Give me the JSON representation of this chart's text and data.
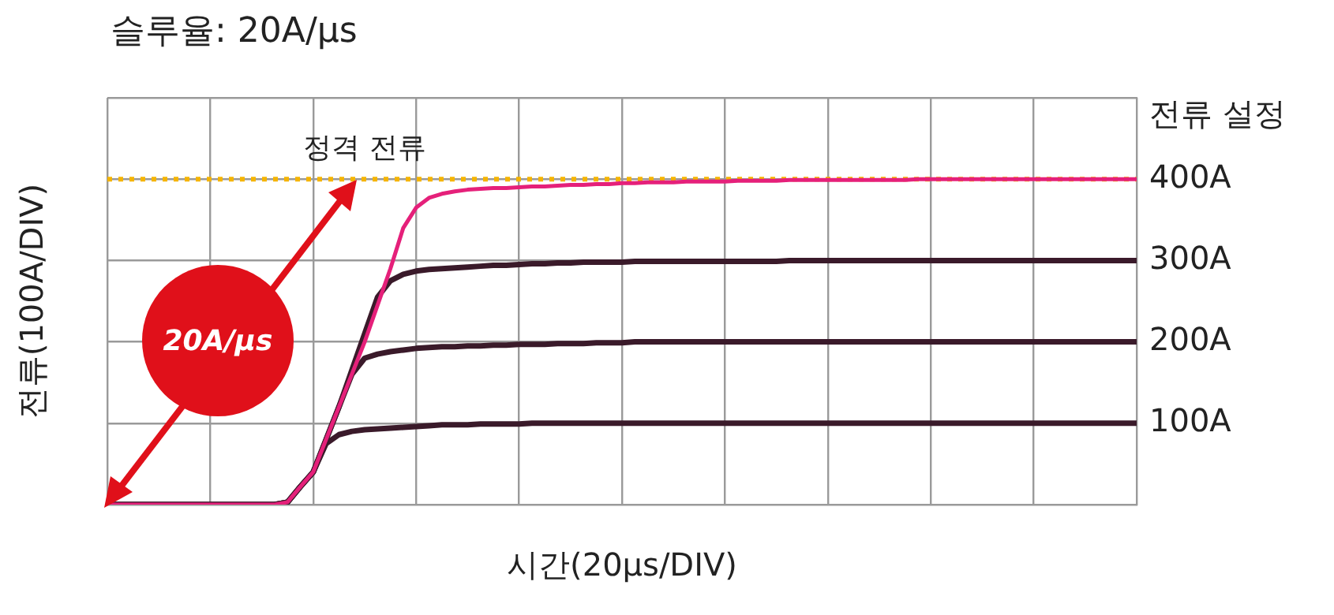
{
  "chart_data": {
    "type": "line",
    "title": "슬루율: 20A/μs",
    "xlabel": "시간(20μs/DIV)",
    "ylabel": "전류(100A/DIV)",
    "annotations": [
      "20A/μs",
      "전류 설정"
    ],
    "categories": [
      null,
      null,
      null,
      null,
      null,
      null,
      null,
      null,
      null,
      null,
      null,
      null,
      null,
      null,
      null,
      null,
      null,
      null,
      null,
      null,
      null,
      null,
      null,
      null,
      null,
      null,
      null,
      null,
      null,
      null,
      null,
      null,
      null,
      null,
      null,
      null,
      null,
      null,
      null,
      null,
      null,
      null,
      null,
      null,
      null,
      null,
      null,
      null,
      null,
      null,
      null,
      null,
      null,
      null,
      null,
      null,
      null,
      null,
      null,
      null,
      null,
      null,
      null,
      null,
      null,
      null,
      null,
      null,
      null,
      null,
      null,
      null,
      null,
      null,
      null,
      null,
      null,
      null,
      null,
      null,
      null
    ],
    "ylim": [
      0,
      500
    ],
    "yticks": [
      {
        "value": 0,
        "label": null
      },
      {
        "value": 100,
        "label": "100A"
      },
      {
        "value": 200,
        "label": "200A"
      },
      {
        "value": 300,
        "label": "300A"
      },
      {
        "value": 400,
        "label": "400A"
      },
      {
        "value": 500,
        "label": null
      }
    ],
    "tick_labels": "y",
    "grid": true,
    "marker": "none",
    "line_style": "solid",
    "ref_lines": [
      {
        "axis": "y",
        "value": 400,
        "label": "정격 전류",
        "color": "#f5b400",
        "line_style": "dotted"
      }
    ],
    "series": [
      {
        "color": "#3a1a2a",
        "values": [
          0,
          0,
          0,
          0,
          0,
          0,
          0,
          0,
          0,
          0,
          0,
          0,
          0,
          0,
          3,
          22,
          40,
          75,
          86,
          90,
          92,
          93,
          94,
          95,
          96,
          97,
          98,
          98,
          98,
          99,
          99,
          99,
          99,
          100,
          100,
          100,
          100,
          100,
          100,
          100,
          100,
          100,
          100,
          100,
          100,
          100,
          100,
          100,
          100,
          100,
          100,
          100,
          100,
          100,
          100,
          100,
          100,
          100,
          100,
          100,
          100,
          100,
          100,
          100,
          100,
          100,
          100,
          100,
          100,
          100,
          100,
          100,
          100,
          100,
          100,
          100,
          100,
          100,
          100,
          100,
          100
        ]
      },
      {
        "color": "#3a1a2a",
        "values": [
          0,
          0,
          0,
          0,
          0,
          0,
          0,
          0,
          0,
          0,
          0,
          0,
          0,
          0,
          3,
          22,
          40,
          80,
          120,
          160,
          180,
          185,
          188,
          190,
          192,
          193,
          194,
          194,
          195,
          195,
          196,
          196,
          197,
          197,
          197,
          198,
          198,
          198,
          199,
          199,
          199,
          200,
          200,
          200,
          200,
          200,
          200,
          200,
          200,
          200,
          200,
          200,
          200,
          200,
          200,
          200,
          200,
          200,
          200,
          200,
          200,
          200,
          200,
          200,
          200,
          200,
          200,
          200,
          200,
          200,
          200,
          200,
          200,
          200,
          200,
          200,
          200,
          200,
          200,
          200,
          200
        ]
      },
      {
        "color": "#3a1a2a",
        "values": [
          0,
          0,
          0,
          0,
          0,
          0,
          0,
          0,
          0,
          0,
          0,
          0,
          0,
          0,
          3,
          22,
          40,
          80,
          120,
          165,
          210,
          255,
          275,
          283,
          287,
          289,
          290,
          291,
          292,
          293,
          294,
          294,
          295,
          296,
          296,
          297,
          297,
          298,
          298,
          298,
          298,
          299,
          299,
          299,
          299,
          299,
          299,
          299,
          299,
          299,
          299,
          299,
          299,
          300,
          300,
          300,
          300,
          300,
          300,
          300,
          300,
          300,
          300,
          300,
          300,
          300,
          300,
          300,
          300,
          300,
          300,
          300,
          300,
          300,
          300,
          300,
          300,
          300,
          300,
          300,
          300
        ]
      },
      {
        "color": "#e5207a",
        "values": [
          0,
          0,
          0,
          0,
          0,
          0,
          0,
          0,
          0,
          0,
          0,
          0,
          0,
          0,
          3,
          22,
          40,
          80,
          120,
          160,
          200,
          245,
          290,
          340,
          365,
          377,
          382,
          385,
          387,
          388,
          389,
          389,
          390,
          391,
          391,
          392,
          393,
          393,
          394,
          394,
          395,
          395,
          396,
          396,
          396,
          397,
          397,
          397,
          397,
          398,
          398,
          398,
          398,
          399,
          399,
          399,
          399,
          399,
          399,
          399,
          399,
          399,
          399,
          400,
          400,
          400,
          400,
          400,
          400,
          400,
          400,
          400,
          400,
          400,
          400,
          400,
          400,
          400,
          400,
          400,
          400
        ]
      }
    ]
  }
}
